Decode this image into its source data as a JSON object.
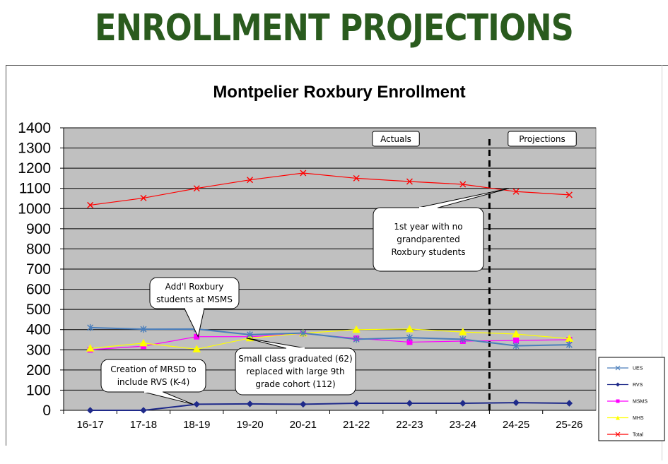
{
  "header": {
    "title": "ENROLLMENT PROJECTIONS"
  },
  "chart_data": {
    "type": "line",
    "title": "Montpelier Roxbury Enrollment",
    "xlabel": "",
    "ylabel": "",
    "categories": [
      "16-17",
      "17-18",
      "18-19",
      "19-20",
      "20-21",
      "21-22",
      "22-23",
      "23-24",
      "24-25",
      "25-26"
    ],
    "ylim": [
      0,
      1400
    ],
    "yticks": [
      0,
      100,
      200,
      300,
      400,
      500,
      600,
      700,
      800,
      900,
      1000,
      1100,
      1200,
      1300,
      1400
    ],
    "grid": true,
    "plot_background": "#c0c0c0",
    "legend_position": "bottom-right",
    "series": [
      {
        "name": "UES",
        "color": "#4a7ebb",
        "marker": "asterisk",
        "values": [
          410,
          402,
          403,
          375,
          383,
          352,
          360,
          352,
          320,
          325
        ]
      },
      {
        "name": "RVS",
        "color": "#1f2a8a",
        "marker": "diamond",
        "values": [
          0,
          0,
          30,
          32,
          30,
          35,
          35,
          35,
          38,
          35
        ]
      },
      {
        "name": "MSMS",
        "color": "#ff00ff",
        "marker": "square",
        "values": [
          300,
          318,
          365,
          365,
          380,
          357,
          338,
          343,
          346,
          350
        ]
      },
      {
        "name": "MHS",
        "color": "#ffff00",
        "marker": "triangle",
        "values": [
          307,
          333,
          303,
          358,
          382,
          400,
          403,
          388,
          378,
          355
        ]
      },
      {
        "name": "Total",
        "color": "#ff0000",
        "marker": "x",
        "values": [
          1017,
          1052,
          1100,
          1142,
          1176,
          1150,
          1134,
          1120,
          1084,
          1068
        ]
      }
    ],
    "divider_after_category": "23-24",
    "region_labels": [
      "Actuals",
      "Projections"
    ],
    "annotations": [
      {
        "text": [
          "1st year with no",
          "grandparented",
          "Roxbury students"
        ],
        "points_to": "24-25"
      },
      {
        "text": [
          "Add'l Roxbury",
          "students at MSMS"
        ],
        "points_to": "18-19"
      },
      {
        "text": [
          "Small class graduated (62)",
          "replaced with large 9th",
          "grade cohort (112)"
        ],
        "points_to": "19-20"
      },
      {
        "text": [
          "Creation of MRSD to",
          "include RVS (K-4)"
        ],
        "points_to": "18-19"
      }
    ]
  }
}
